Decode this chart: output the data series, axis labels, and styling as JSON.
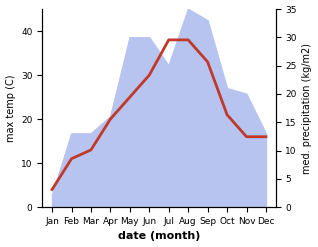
{
  "months": [
    "Jan",
    "Feb",
    "Mar",
    "Apr",
    "May",
    "Jun",
    "Jul",
    "Aug",
    "Sep",
    "Oct",
    "Nov",
    "Dec"
  ],
  "max_temp": [
    4,
    11,
    13,
    20,
    25,
    30,
    38,
    38,
    33,
    21,
    16,
    16
  ],
  "precipitation": [
    2,
    13,
    13,
    16,
    30,
    30,
    25,
    35,
    33,
    21,
    20,
    13
  ],
  "temp_color": "#c0392b",
  "precip_fill_color": "#b8c4f0",
  "xlabel": "date (month)",
  "ylabel_left": "max temp (C)",
  "ylabel_right": "med. precipitation (kg/m2)",
  "ylim_left": [
    0,
    45
  ],
  "ylim_right": [
    0,
    35
  ],
  "yticks_left": [
    0,
    10,
    20,
    30,
    40
  ],
  "yticks_right": [
    0,
    5,
    10,
    15,
    20,
    25,
    30,
    35
  ],
  "bg_color": "#ffffff",
  "line_width": 2.0,
  "ylabel_fontsize": 7,
  "xlabel_fontsize": 8,
  "tick_fontsize": 6.5
}
